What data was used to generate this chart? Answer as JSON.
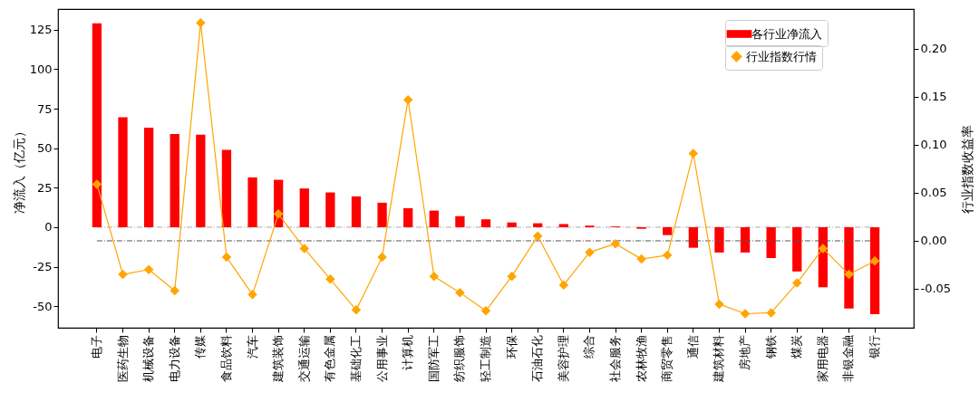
{
  "chart_data": {
    "type": "bar",
    "ylabel": "净流入（亿元）",
    "y2label": "行业指数收益率",
    "categories": [
      "电子",
      "医药生物",
      "机械设备",
      "电力设备",
      "传媒",
      "食品饮料",
      "汽车",
      "建筑装饰",
      "交通运输",
      "有色金属",
      "基础化工",
      "公用事业",
      "计算机",
      "国防军工",
      "纺织服饰",
      "轻工制造",
      "环保",
      "石油石化",
      "美容护理",
      "综合",
      "社会服务",
      "农林牧渔",
      "商贸零售",
      "通信",
      "建筑材料",
      "房地产",
      "钢铁",
      "煤炭",
      "家用电器",
      "非银金融",
      "银行"
    ],
    "series": [
      {
        "name": "各行业净流入",
        "color": "#ff0000",
        "values": [
          129,
          69.5,
          63,
          59,
          58.5,
          49,
          31.5,
          30,
          24.5,
          22,
          19.5,
          15.5,
          12,
          10.5,
          7,
          5,
          3,
          2.5,
          2,
          1,
          0.5,
          -1,
          -5,
          -13,
          -16,
          -16,
          -19.5,
          -28,
          -38,
          -51.5,
          -55
        ]
      },
      {
        "name": "行业指数行情",
        "type": "line",
        "axis": "y2",
        "color": "#ffa500",
        "values": [
          0.059,
          -0.035,
          -0.03,
          -0.052,
          0.227,
          -0.017,
          -0.056,
          0.028,
          -0.008,
          -0.04,
          -0.072,
          -0.017,
          0.147,
          -0.037,
          -0.054,
          -0.073,
          -0.037,
          0.005,
          -0.046,
          -0.012,
          -0.003,
          -0.019,
          -0.015,
          0.091,
          -0.066,
          -0.076,
          -0.075,
          -0.044,
          -0.008,
          -0.035,
          -0.021
        ]
      }
    ],
    "ylim": [
      -63.6,
      138
    ],
    "yticks": [
      -50,
      -25,
      0,
      25,
      50,
      75,
      100,
      125
    ],
    "y2lim": [
      -0.0906,
      0.2415
    ],
    "y2ticks": [
      {
        "value": -0.05,
        "label": "-0.05"
      },
      {
        "value": 0,
        "label": "0.00"
      },
      {
        "value": 0.05,
        "label": "0.05"
      },
      {
        "value": 0.1,
        "label": "0.10"
      },
      {
        "value": 0.15,
        "label": "0.15"
      },
      {
        "value": 0.2,
        "label": "0.20"
      }
    ],
    "ref_lines": [
      {
        "axis": "y",
        "value": 0,
        "color": "#aaaaaa",
        "line_style": "dashed"
      },
      {
        "axis": "y2",
        "value": 0,
        "color": "#555555",
        "line_style": "dashed"
      }
    ],
    "marker": "diamond",
    "line_style": "solid",
    "grid": false,
    "legend": "top right"
  }
}
